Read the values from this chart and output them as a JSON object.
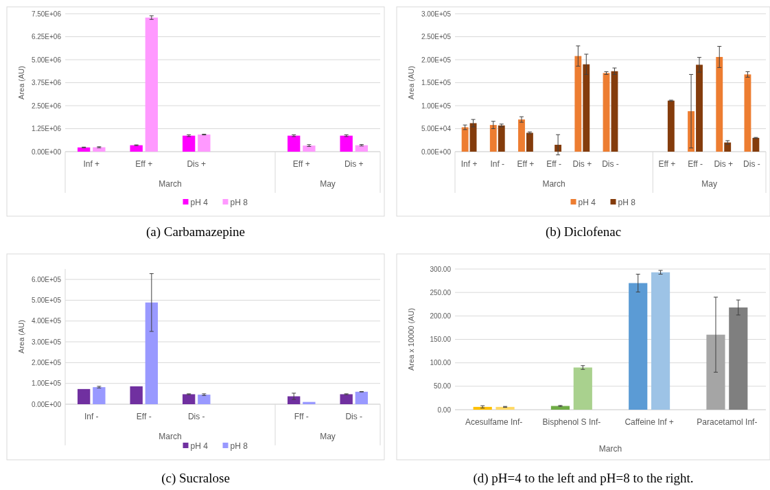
{
  "chart_data": [
    {
      "type": "bar",
      "title": "(a) Carbamazepine",
      "ylabel": "Area (AU)",
      "categories": [
        "Inf +",
        "Eff +",
        "Dis +",
        null,
        "Eff +",
        "Dis +"
      ],
      "annotations": [
        "March",
        "May"
      ],
      "series": [
        {
          "name": "pH 4",
          "color": "#ff00ff",
          "values": [
            230000,
            350000,
            870000,
            null,
            870000,
            870000
          ],
          "errors": [
            20000,
            20000,
            50000,
            null,
            50000,
            50000
          ]
        },
        {
          "name": "pH 8",
          "color": "#ff99ff",
          "values": [
            240000,
            7290000,
            930000,
            null,
            330000,
            350000
          ],
          "errors": [
            30000,
            100000,
            20000,
            null,
            50000,
            40000
          ]
        }
      ],
      "ylim": [
        0,
        7500000
      ],
      "yticks": [
        {
          "value": 0,
          "label": "0.00E+00"
        },
        {
          "value": 1250000,
          "label": "1.25E+06"
        },
        {
          "value": 2500000,
          "label": "2.50E+06"
        },
        {
          "value": 3750000,
          "label": "3.75E+06"
        },
        {
          "value": 5000000,
          "label": "5.00E+06"
        },
        {
          "value": 6250000,
          "label": "6.25E+06"
        },
        {
          "value": 7500000,
          "label": "7.50E+06"
        }
      ],
      "grid": "y",
      "legend": "bottom"
    },
    {
      "type": "bar",
      "title": "(b) Diclofenac",
      "ylabel": "Area (AU)",
      "categories": [
        "Inf +",
        "Inf -",
        "Eff +",
        "Eff -",
        "Dis +",
        "Dis -",
        null,
        "Eff +",
        "Eff -",
        "Dis +",
        "Dis -"
      ],
      "annotations": [
        "March",
        "May"
      ],
      "series": [
        {
          "name": "pH 4",
          "color": "#ed7d31",
          "values": [
            53000,
            58000,
            70000,
            null,
            208000,
            171000,
            null,
            null,
            88000,
            206000,
            168000
          ],
          "errors": [
            5000,
            8000,
            6000,
            null,
            22000,
            3000,
            null,
            null,
            80000,
            23000,
            6000
          ]
        },
        {
          "name": "pH 8",
          "color": "#843c0c",
          "values": [
            62000,
            57000,
            41000,
            15000,
            190000,
            175000,
            null,
            111000,
            189000,
            20000,
            30000
          ],
          "errors": [
            8000,
            3000,
            2000,
            22000,
            22000,
            7000,
            null,
            1000,
            16000,
            4000,
            1000
          ]
        }
      ],
      "ylim": [
        0,
        300000
      ],
      "yticks": [
        {
          "value": 0,
          "label": "0.00E+00"
        },
        {
          "value": 50000,
          "label": "5.00E+04"
        },
        {
          "value": 100000,
          "label": "1.00E+05"
        },
        {
          "value": 150000,
          "label": "1.50E+05"
        },
        {
          "value": 200000,
          "label": "2.00E+05"
        },
        {
          "value": 250000,
          "label": "2.50E+05"
        },
        {
          "value": 300000,
          "label": "3.00E+05"
        }
      ],
      "grid": "y",
      "legend": "bottom"
    },
    {
      "type": "bar",
      "title": "(c) Sucralose",
      "ylabel": "Area (AU)",
      "categories": [
        "Inf -",
        "Eff -",
        "Dis -",
        null,
        "Fff -",
        "Dis -"
      ],
      "annotations": [
        "March",
        "May"
      ],
      "series": [
        {
          "name": "pH 4",
          "color": "#7030a0",
          "values": [
            73000,
            86000,
            48000,
            null,
            38000,
            48000
          ],
          "errors": [
            null,
            null,
            2000,
            null,
            15000,
            2000
          ]
        },
        {
          "name": "pH 8",
          "color": "#9999ff",
          "values": [
            82000,
            489000,
            46000,
            null,
            11000,
            60000
          ],
          "errors": [
            4000,
            139000,
            4000,
            null,
            null,
            1000
          ]
        }
      ],
      "ylim": [
        0,
        650000
      ],
      "yticks": [
        {
          "value": 0,
          "label": "0.00E+00"
        },
        {
          "value": 100000,
          "label": "1.00E+05"
        },
        {
          "value": 200000,
          "label": "2.00E+05"
        },
        {
          "value": 300000,
          "label": "3.00E+05"
        },
        {
          "value": 400000,
          "label": "4.00E+05"
        },
        {
          "value": 500000,
          "label": "5.00E+05"
        },
        {
          "value": 600000,
          "label": "6.00E+05"
        }
      ],
      "grid": "y",
      "legend": "bottom"
    },
    {
      "type": "bar",
      "title": "(d) pH=4 to the left and pH=8 to the right.",
      "ylabel": "Area x 10000 (AU)",
      "xlabel": "March",
      "categories": [
        "Acesulfame Inf-",
        "Bisphenol S Inf-",
        "Caffeine Inf +",
        "Paracetamol Inf-"
      ],
      "series": [
        {
          "colors": [
            "#ffc000",
            "#70ad47",
            "#5b9bd5",
            "#a5a5a5"
          ],
          "values": [
            6,
            8,
            270,
            160
          ],
          "errors": [
            2.5,
            1,
            19,
            80
          ]
        },
        {
          "colors": [
            "#ffd966",
            "#a9d18e",
            "#9dc3e6",
            "#7f7f7f"
          ],
          "values": [
            6,
            90,
            293,
            218
          ],
          "errors": [
            1,
            4,
            4,
            16
          ]
        }
      ],
      "ylim": [
        0,
        300
      ],
      "yticks": [
        {
          "value": 0,
          "label": "0.00"
        },
        {
          "value": 50,
          "label": "50.00"
        },
        {
          "value": 100,
          "label": "100.00"
        },
        {
          "value": 150,
          "label": "150.00"
        },
        {
          "value": 200,
          "label": "200.00"
        },
        {
          "value": 250,
          "label": "250.00"
        },
        {
          "value": 300,
          "label": "300.00"
        }
      ],
      "grid": "y",
      "legend": false
    }
  ]
}
